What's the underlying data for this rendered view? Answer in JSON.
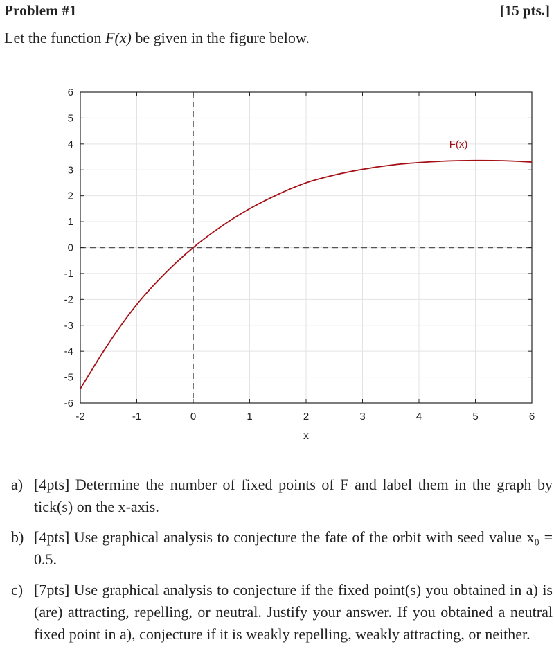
{
  "header": {
    "title": "Problem #1",
    "points": "[15 pts.]"
  },
  "intro": {
    "prefix": "Let the function ",
    "func": "F(x)",
    "suffix": " be given in the figure below."
  },
  "chart_data": {
    "type": "line",
    "title": "",
    "xlabel": "x",
    "ylabel": "",
    "xlim": [
      -2,
      6
    ],
    "ylim": [
      -6,
      6
    ],
    "xticks": [
      "-2",
      "-1",
      "0",
      "1",
      "2",
      "3",
      "4",
      "5",
      "6"
    ],
    "yticks": [
      "6",
      "5",
      "4",
      "3",
      "2",
      "1",
      "0",
      "-1",
      "-2",
      "-3",
      "-4",
      "-5",
      "-6"
    ],
    "grid": true,
    "legend": null,
    "annotations": [
      {
        "text": "F(x)",
        "x": 4.7,
        "y": 4.0,
        "color": "#a50f15"
      }
    ],
    "reference_lines": [
      {
        "type": "vertical",
        "x": 0,
        "style": "dashed",
        "color": "#555555"
      },
      {
        "type": "horizontal",
        "y": 0,
        "style": "dashed",
        "color": "#555555"
      }
    ],
    "series": [
      {
        "name": "F(x)",
        "color": "#a50f15",
        "x": [
          -2,
          -1.5,
          -1,
          -0.5,
          0,
          0.5,
          1,
          1.5,
          2,
          2.5,
          3,
          3.5,
          4,
          4.5,
          5,
          5.5,
          6
        ],
        "y": [
          -5.45,
          -3.7,
          -2.2,
          -1.0,
          0,
          0.82,
          1.5,
          2.05,
          2.5,
          2.8,
          3.02,
          3.18,
          3.28,
          3.34,
          3.36,
          3.35,
          3.3
        ]
      }
    ]
  },
  "questions": [
    {
      "marker": "a)",
      "pts": "[4pts]",
      "text": " Determine the number of fixed points of F and label them in the graph by tick(s) on the x-axis."
    },
    {
      "marker": "b)",
      "pts": "[4pts]",
      "text": " Use graphical analysis to conjecture the fate of the orbit with seed value x₀ = 0.5."
    },
    {
      "marker": "c)",
      "pts": "[7pts]",
      "text": " Use graphical analysis to conjecture if the fixed point(s) you obtained in a) is (are) attracting, repelling, or neutral. Justify your answer. If you obtained a neutral fixed point in a), conjecture if it is weakly repelling, weakly attracting, or neither."
    }
  ]
}
